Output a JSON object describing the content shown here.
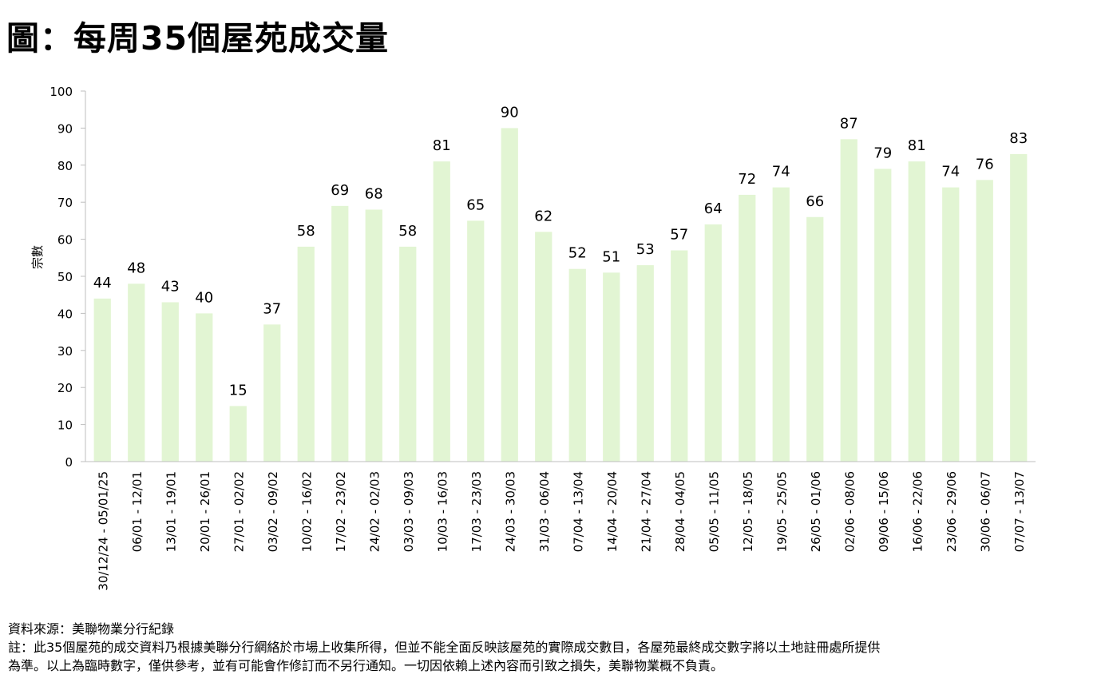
{
  "title": "圖：每周35個屋苑成交量",
  "chart_data": {
    "type": "bar",
    "title": "圖：每周35個屋苑成交量",
    "ylabel": "宗數",
    "xlabel": "",
    "ylim": [
      0,
      100
    ],
    "yticks": [
      0,
      10,
      20,
      30,
      40,
      50,
      60,
      70,
      80,
      90,
      100
    ],
    "grid": false,
    "bar_color": "#e2f5d3",
    "categories": [
      "30/12/24 - 05/01/25",
      "06/01 - 12/01",
      "13/01 - 19/01",
      "20/01 - 26/01",
      "27/01 - 02/02",
      "03/02 - 09/02",
      "10/02 - 16/02",
      "17/02 - 23/02",
      "24/02 - 02/03",
      "03/03 - 09/03",
      "10/03 - 16/03",
      "17/03 - 23/03",
      "24/03 - 30/03",
      "31/03 - 06/04",
      "07/04 - 13/04",
      "14/04 - 20/04",
      "21/04 - 27/04",
      "28/04 - 04/05",
      "05/05 - 11/05",
      "12/05 - 18/05",
      "19/05 - 25/05",
      "26/05 - 01/06",
      "02/06 - 08/06",
      "09/06 - 15/06",
      "16/06 - 22/06",
      "23/06 - 29/06",
      "30/06 - 06/07",
      "07/07 - 13/07"
    ],
    "values": [
      44,
      48,
      43,
      40,
      15,
      37,
      58,
      69,
      68,
      58,
      81,
      65,
      90,
      62,
      52,
      51,
      53,
      57,
      64,
      72,
      74,
      66,
      87,
      79,
      81,
      74,
      76,
      83
    ]
  },
  "notes": {
    "source": "資料來源：美聯物業分行紀錄",
    "note_line1": "註：此35個屋苑的成交資料乃根據美聯分行網絡於市場上收集所得，但並不能全面反映該屋苑的實際成交數目，各屋苑最終成交數字將以土地註冊處所提供",
    "note_line2": "為準。以上為臨時數字，僅供參考，並有可能會作修訂而不另行通知。一切因依賴上述內容而引致之損失，美聯物業概不負責。"
  }
}
